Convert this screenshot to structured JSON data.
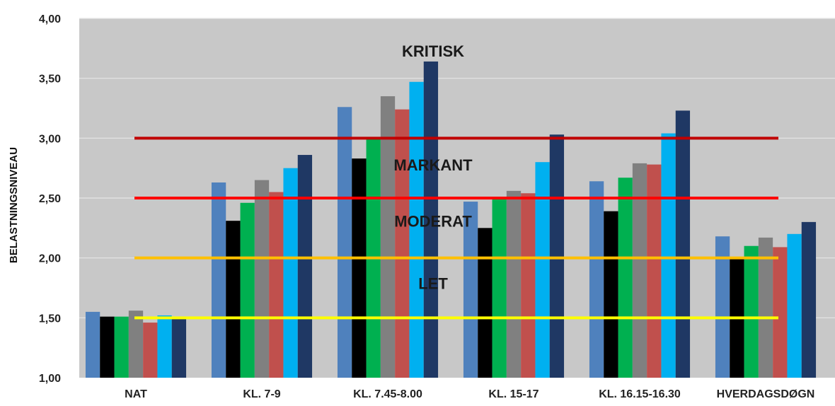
{
  "chart_data": {
    "type": "bar",
    "title": "",
    "xlabel": "",
    "ylabel": "BELASTNINGSNIVEAU",
    "ylim": [
      1.0,
      4.0
    ],
    "yticks": [
      "1,00",
      "1,50",
      "2,00",
      "2,50",
      "3,00",
      "3,50",
      "4,00"
    ],
    "grid": true,
    "legend": "none",
    "categories": [
      "NAT",
      "KL. 7-9",
      "KL. 7.45-8.00",
      "KL. 15-17",
      "KL. 16.15-16.30",
      "HVERDAGSDØGN"
    ],
    "series": [
      {
        "color": "#4f81bd",
        "values": [
          1.55,
          2.63,
          3.26,
          2.47,
          2.64,
          2.18
        ]
      },
      {
        "color": "#000000",
        "values": [
          1.51,
          2.31,
          2.83,
          2.25,
          2.39,
          1.99
        ]
      },
      {
        "color": "#00b050",
        "values": [
          1.51,
          2.46,
          2.99,
          2.49,
          2.67,
          2.1
        ]
      },
      {
        "color": "#808080",
        "values": [
          1.56,
          2.65,
          3.35,
          2.56,
          2.79,
          2.17
        ]
      },
      {
        "color": "#c0504d",
        "values": [
          1.46,
          2.55,
          3.24,
          2.54,
          2.78,
          2.09
        ]
      },
      {
        "color": "#00b0f0",
        "values": [
          1.52,
          2.75,
          3.47,
          2.8,
          3.04,
          2.2
        ]
      },
      {
        "color": "#1f3864",
        "values": [
          1.49,
          2.86,
          3.64,
          3.03,
          3.23,
          2.3
        ]
      }
    ],
    "threshold_lines": [
      {
        "value": 3.0,
        "color": "#c00000"
      },
      {
        "value": 2.5,
        "color": "#ff0000"
      },
      {
        "value": 2.0,
        "color": "#ffc000"
      },
      {
        "value": 1.5,
        "color": "#ffff00"
      }
    ],
    "band_labels": [
      {
        "text": "KRITISK",
        "value": 3.68
      },
      {
        "text": "MARKANT",
        "value": 2.73
      },
      {
        "text": "MODERAT",
        "value": 2.26
      },
      {
        "text": "LET",
        "value": 1.74
      }
    ]
  }
}
